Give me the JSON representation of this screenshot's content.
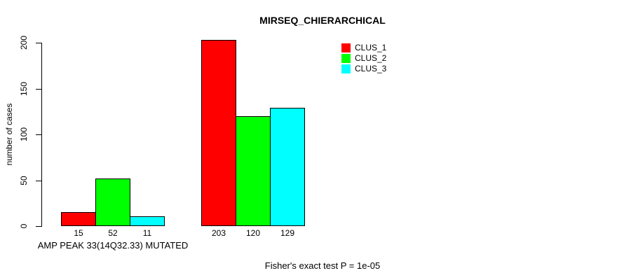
{
  "chart_data": {
    "type": "bar",
    "title": "MIRSEQ_CHIERARCHICAL",
    "ylabel": "number of cases",
    "xlabel": "",
    "ylim": [
      0,
      200
    ],
    "yticks": [
      0,
      50,
      100,
      150,
      200
    ],
    "grid": false,
    "legend_position": "top-right",
    "categories": [
      "AMP PEAK 33(14Q32.33) MUTATED",
      ""
    ],
    "series": [
      {
        "name": "CLUS_1",
        "color": "#ff0000",
        "values": [
          15,
          203
        ]
      },
      {
        "name": "CLUS_2",
        "color": "#00ff00",
        "values": [
          52,
          120
        ]
      },
      {
        "name": "CLUS_3",
        "color": "#00ffff",
        "values": [
          11,
          129
        ]
      }
    ],
    "bar_labels": [
      [
        15,
        52,
        11
      ],
      [
        203,
        120,
        129
      ]
    ],
    "annotation": "Fisher's exact test P = 1e-05",
    "bar_border_color": "#000000",
    "background_color": "#ffffff",
    "text_color": "#000000"
  }
}
